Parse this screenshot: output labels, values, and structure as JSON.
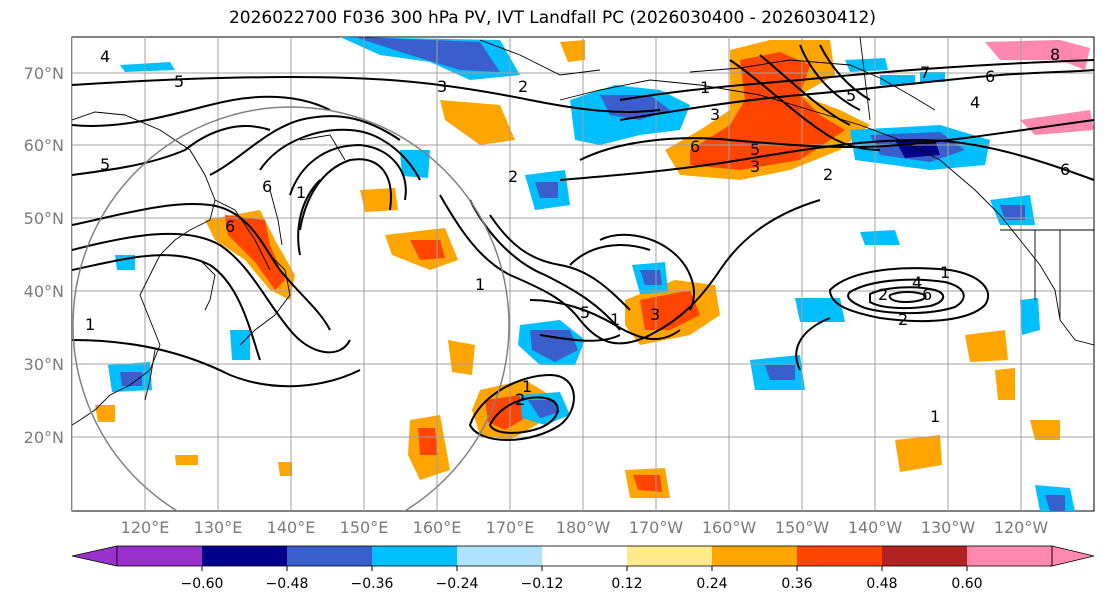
{
  "title": "2026022700 F036 300 hPa PV, IVT Landfall PC (2026030400 - 2026030412)",
  "lat_labels": [
    "70°N",
    "60°N",
    "50°N",
    "40°N",
    "30°N",
    "20°N"
  ],
  "lon_labels": [
    "120°E",
    "130°E",
    "140°E",
    "150°E",
    "160°E",
    "170°E",
    "180°W",
    "170°W",
    "160°W",
    "150°W",
    "140°W",
    "130°W",
    "120°W"
  ],
  "colorbar": {
    "ticks": [
      "−0.60",
      "−0.48",
      "−0.36",
      "−0.24",
      "−0.12",
      "0.12",
      "0.24",
      "0.36",
      "0.48",
      "0.60"
    ],
    "colors": [
      "#9932cc",
      "#00008b",
      "#3a5fcd",
      "#00bfff",
      "#b0e2ff",
      "#ffffff",
      "#ffeb8a",
      "#ffa500",
      "#ff4500",
      "#b22222",
      "#ff88b0"
    ]
  },
  "contour_labels": [
    "4",
    "5",
    "5",
    "1",
    "3",
    "2",
    "1",
    "5",
    "7",
    "6",
    "8",
    "4",
    "6",
    "3",
    "2",
    "6",
    "5",
    "3",
    "1",
    "5",
    "1",
    "2",
    "6",
    "3",
    "2",
    "1",
    "6",
    "6",
    "4",
    "1",
    "2",
    "1",
    "2",
    "1"
  ],
  "colors": {
    "land_line": "#000000",
    "grid": "#a0a0a0",
    "contour": "#000000",
    "circle": "#808080"
  }
}
